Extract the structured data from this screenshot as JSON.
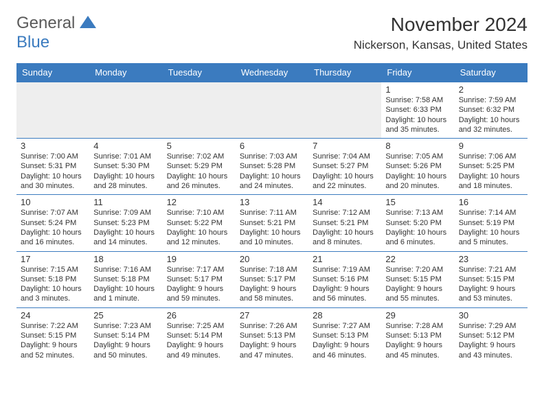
{
  "logo": {
    "word1": "General",
    "word2": "Blue"
  },
  "title": "November 2024",
  "location": "Nickerson, Kansas, United States",
  "colors": {
    "header_bg": "#3b7bbf",
    "header_text": "#ffffff",
    "border": "#3b7bbf",
    "text": "#333333",
    "empty_bg": "#eeeeee",
    "page_bg": "#ffffff",
    "logo_gray": "#5a5a5a",
    "logo_blue": "#3b7bbf"
  },
  "fonts": {
    "title_size": 28,
    "location_size": 17,
    "header_size": 13,
    "daynum_size": 13,
    "daytext_size": 11
  },
  "day_headers": [
    "Sunday",
    "Monday",
    "Tuesday",
    "Wednesday",
    "Thursday",
    "Friday",
    "Saturday"
  ],
  "weeks": [
    [
      {
        "num": "",
        "lines": []
      },
      {
        "num": "",
        "lines": []
      },
      {
        "num": "",
        "lines": []
      },
      {
        "num": "",
        "lines": []
      },
      {
        "num": "",
        "lines": []
      },
      {
        "num": "1",
        "lines": [
          "Sunrise: 7:58 AM",
          "Sunset: 6:33 PM",
          "Daylight: 10 hours",
          "and 35 minutes."
        ]
      },
      {
        "num": "2",
        "lines": [
          "Sunrise: 7:59 AM",
          "Sunset: 6:32 PM",
          "Daylight: 10 hours",
          "and 32 minutes."
        ]
      }
    ],
    [
      {
        "num": "3",
        "lines": [
          "Sunrise: 7:00 AM",
          "Sunset: 5:31 PM",
          "Daylight: 10 hours",
          "and 30 minutes."
        ]
      },
      {
        "num": "4",
        "lines": [
          "Sunrise: 7:01 AM",
          "Sunset: 5:30 PM",
          "Daylight: 10 hours",
          "and 28 minutes."
        ]
      },
      {
        "num": "5",
        "lines": [
          "Sunrise: 7:02 AM",
          "Sunset: 5:29 PM",
          "Daylight: 10 hours",
          "and 26 minutes."
        ]
      },
      {
        "num": "6",
        "lines": [
          "Sunrise: 7:03 AM",
          "Sunset: 5:28 PM",
          "Daylight: 10 hours",
          "and 24 minutes."
        ]
      },
      {
        "num": "7",
        "lines": [
          "Sunrise: 7:04 AM",
          "Sunset: 5:27 PM",
          "Daylight: 10 hours",
          "and 22 minutes."
        ]
      },
      {
        "num": "8",
        "lines": [
          "Sunrise: 7:05 AM",
          "Sunset: 5:26 PM",
          "Daylight: 10 hours",
          "and 20 minutes."
        ]
      },
      {
        "num": "9",
        "lines": [
          "Sunrise: 7:06 AM",
          "Sunset: 5:25 PM",
          "Daylight: 10 hours",
          "and 18 minutes."
        ]
      }
    ],
    [
      {
        "num": "10",
        "lines": [
          "Sunrise: 7:07 AM",
          "Sunset: 5:24 PM",
          "Daylight: 10 hours",
          "and 16 minutes."
        ]
      },
      {
        "num": "11",
        "lines": [
          "Sunrise: 7:09 AM",
          "Sunset: 5:23 PM",
          "Daylight: 10 hours",
          "and 14 minutes."
        ]
      },
      {
        "num": "12",
        "lines": [
          "Sunrise: 7:10 AM",
          "Sunset: 5:22 PM",
          "Daylight: 10 hours",
          "and 12 minutes."
        ]
      },
      {
        "num": "13",
        "lines": [
          "Sunrise: 7:11 AM",
          "Sunset: 5:21 PM",
          "Daylight: 10 hours",
          "and 10 minutes."
        ]
      },
      {
        "num": "14",
        "lines": [
          "Sunrise: 7:12 AM",
          "Sunset: 5:21 PM",
          "Daylight: 10 hours",
          "and 8 minutes."
        ]
      },
      {
        "num": "15",
        "lines": [
          "Sunrise: 7:13 AM",
          "Sunset: 5:20 PM",
          "Daylight: 10 hours",
          "and 6 minutes."
        ]
      },
      {
        "num": "16",
        "lines": [
          "Sunrise: 7:14 AM",
          "Sunset: 5:19 PM",
          "Daylight: 10 hours",
          "and 5 minutes."
        ]
      }
    ],
    [
      {
        "num": "17",
        "lines": [
          "Sunrise: 7:15 AM",
          "Sunset: 5:18 PM",
          "Daylight: 10 hours",
          "and 3 minutes."
        ]
      },
      {
        "num": "18",
        "lines": [
          "Sunrise: 7:16 AM",
          "Sunset: 5:18 PM",
          "Daylight: 10 hours",
          "and 1 minute."
        ]
      },
      {
        "num": "19",
        "lines": [
          "Sunrise: 7:17 AM",
          "Sunset: 5:17 PM",
          "Daylight: 9 hours",
          "and 59 minutes."
        ]
      },
      {
        "num": "20",
        "lines": [
          "Sunrise: 7:18 AM",
          "Sunset: 5:17 PM",
          "Daylight: 9 hours",
          "and 58 minutes."
        ]
      },
      {
        "num": "21",
        "lines": [
          "Sunrise: 7:19 AM",
          "Sunset: 5:16 PM",
          "Daylight: 9 hours",
          "and 56 minutes."
        ]
      },
      {
        "num": "22",
        "lines": [
          "Sunrise: 7:20 AM",
          "Sunset: 5:15 PM",
          "Daylight: 9 hours",
          "and 55 minutes."
        ]
      },
      {
        "num": "23",
        "lines": [
          "Sunrise: 7:21 AM",
          "Sunset: 5:15 PM",
          "Daylight: 9 hours",
          "and 53 minutes."
        ]
      }
    ],
    [
      {
        "num": "24",
        "lines": [
          "Sunrise: 7:22 AM",
          "Sunset: 5:15 PM",
          "Daylight: 9 hours",
          "and 52 minutes."
        ]
      },
      {
        "num": "25",
        "lines": [
          "Sunrise: 7:23 AM",
          "Sunset: 5:14 PM",
          "Daylight: 9 hours",
          "and 50 minutes."
        ]
      },
      {
        "num": "26",
        "lines": [
          "Sunrise: 7:25 AM",
          "Sunset: 5:14 PM",
          "Daylight: 9 hours",
          "and 49 minutes."
        ]
      },
      {
        "num": "27",
        "lines": [
          "Sunrise: 7:26 AM",
          "Sunset: 5:13 PM",
          "Daylight: 9 hours",
          "and 47 minutes."
        ]
      },
      {
        "num": "28",
        "lines": [
          "Sunrise: 7:27 AM",
          "Sunset: 5:13 PM",
          "Daylight: 9 hours",
          "and 46 minutes."
        ]
      },
      {
        "num": "29",
        "lines": [
          "Sunrise: 7:28 AM",
          "Sunset: 5:13 PM",
          "Daylight: 9 hours",
          "and 45 minutes."
        ]
      },
      {
        "num": "30",
        "lines": [
          "Sunrise: 7:29 AM",
          "Sunset: 5:12 PM",
          "Daylight: 9 hours",
          "and 43 minutes."
        ]
      }
    ]
  ]
}
